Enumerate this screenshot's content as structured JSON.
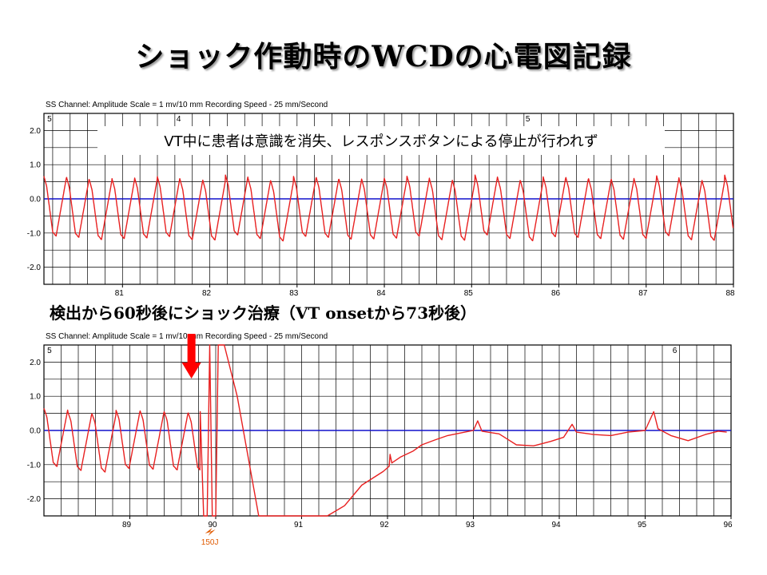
{
  "slide": {
    "title": "ショック作動時のWCDの心電図記録",
    "annotation_top": "VT中に患者は意識を消失、レスポンスボタンによる停止が行われず",
    "caption_bottom": "検出から60秒後にショック治療（VT onsetから73秒後）",
    "shock_label": "150J"
  },
  "colors": {
    "trace": "#e82020",
    "baseline": "#1010cc",
    "grid": "#000000",
    "arrow": "#ff0000",
    "shock_icon": "#e05a00"
  },
  "chart_data": [
    {
      "type": "line",
      "header": "SS Channel: Amplitude Scale = 1 mv/10 mm     Recording Speed - 25 mm/Second",
      "x_range": [
        80.1,
        88
      ],
      "ylim": [
        -2.5,
        2.5
      ],
      "y_ticks": [
        "2.0",
        "1.0",
        "0.0",
        "-1.0",
        "-2.0"
      ],
      "x_ticks": [
        "81",
        "82",
        "83",
        "84",
        "85",
        "86",
        "87",
        "88"
      ],
      "top_markers": [
        {
          "label": "5",
          "x": 80.12
        },
        {
          "label": "4",
          "x": 81.6
        },
        {
          "label": "5",
          "x": 85.6
        }
      ],
      "baseline": 0.0,
      "rhythm": "VT",
      "cycle_length_s": 0.26,
      "amplitude_mv": [
        -1.1,
        0.6
      ],
      "start": 80.1,
      "end": 88.0
    },
    {
      "type": "line",
      "header": "SS Channel: Amplitude Scale = 1 mv/10 mm     Recording Speed - 25 mm/Second",
      "x_range": [
        88.0,
        96.0
      ],
      "ylim": [
        -2.5,
        2.5
      ],
      "y_ticks": [
        "2.0",
        "1.0",
        "0.0",
        "-1.0",
        "-2.0"
      ],
      "x_ticks": [
        "89",
        "90",
        "91",
        "92",
        "93",
        "94",
        "95",
        "96"
      ],
      "top_markers": [
        {
          "label": "5",
          "x": 88.02
        },
        {
          "label": "6",
          "x": 95.3
        }
      ],
      "baseline": 0.0,
      "shock_time": 89.95,
      "vt_end": 89.82,
      "points_after_shock": [
        [
          89.82,
          0.55
        ],
        [
          89.86,
          -2.5
        ],
        [
          89.9,
          -2.5
        ],
        [
          89.93,
          2.5
        ],
        [
          89.96,
          -2.5
        ],
        [
          90.0,
          -2.5
        ],
        [
          90.03,
          2.5
        ],
        [
          90.1,
          2.5
        ],
        [
          90.25,
          1.0
        ],
        [
          90.5,
          -2.5
        ],
        [
          91.3,
          -2.5
        ],
        [
          91.5,
          -2.2
        ],
        [
          91.7,
          -1.6
        ],
        [
          91.95,
          -1.2
        ],
        [
          92.02,
          -1.05
        ],
        [
          92.03,
          -0.7
        ],
        [
          92.05,
          -0.95
        ],
        [
          92.15,
          -0.78
        ],
        [
          92.3,
          -0.6
        ],
        [
          92.4,
          -0.42
        ],
        [
          92.55,
          -0.28
        ],
        [
          92.7,
          -0.15
        ],
        [
          92.9,
          -0.05
        ],
        [
          93.0,
          0.0
        ],
        [
          93.05,
          0.28
        ],
        [
          93.1,
          -0.02
        ],
        [
          93.3,
          -0.1
        ],
        [
          93.5,
          -0.42
        ],
        [
          93.7,
          -0.45
        ],
        [
          93.9,
          -0.32
        ],
        [
          94.05,
          -0.2
        ],
        [
          94.15,
          0.18
        ],
        [
          94.2,
          -0.05
        ],
        [
          94.4,
          -0.12
        ],
        [
          94.6,
          -0.15
        ],
        [
          94.8,
          -0.05
        ],
        [
          95.0,
          0.0
        ],
        [
          95.1,
          0.55
        ],
        [
          95.15,
          0.05
        ],
        [
          95.3,
          -0.15
        ],
        [
          95.5,
          -0.3
        ],
        [
          95.7,
          -0.12
        ],
        [
          95.85,
          -0.02
        ],
        [
          95.95,
          -0.05
        ]
      ],
      "start": 88.0,
      "end": 96.0
    }
  ]
}
